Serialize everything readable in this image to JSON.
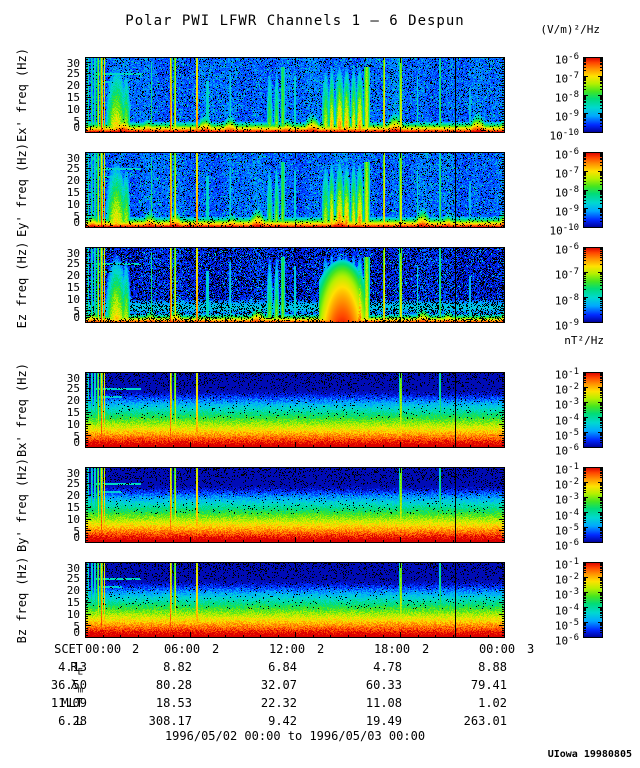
{
  "title": "Polar PWI LFWR Channels 1 — 6 Despun",
  "credit": "UIowa 19980805",
  "footer": {
    "date_range": "1996/05/02 00:00 to 1996/05/03 00:00"
  },
  "chart_data": {
    "type": "heatmap",
    "subtype": "spectrogram",
    "title": "Polar PWI LFWR Channels 1 — 6 Despun",
    "units": {
      "electric": "(V/m)²/Hz",
      "magnetic": "nT²/Hz"
    },
    "cb_base": "10",
    "x": {
      "label": "SCET",
      "start": "1996/05/02 00:00",
      "end": "1996/05/03 00:00",
      "hours": 24,
      "tick_hours": [
        0,
        6,
        12,
        18,
        24
      ],
      "tick_labels": [
        "00:00",
        "06:00",
        "12:00",
        "18:00",
        "00:00"
      ],
      "tick_days": [
        "2",
        "2",
        "2",
        "2",
        "3"
      ]
    },
    "y": {
      "ticks": [
        30,
        25,
        20,
        15,
        10,
        5,
        0
      ],
      "lim": [
        0,
        32
      ]
    },
    "colormap": [
      [
        0.0,
        "#000096"
      ],
      [
        0.1,
        "#0028ff"
      ],
      [
        0.22,
        "#00a8ff"
      ],
      [
        0.33,
        "#00d8d0"
      ],
      [
        0.45,
        "#00dc78"
      ],
      [
        0.55,
        "#46e61e"
      ],
      [
        0.65,
        "#b4f000"
      ],
      [
        0.75,
        "#ffe100"
      ],
      [
        0.85,
        "#ff9000"
      ],
      [
        0.93,
        "#ff4600"
      ],
      [
        1.0,
        "#dc0000"
      ]
    ],
    "panels": [
      {
        "id": "ex",
        "ylabel": "Ex' freq (Hz)",
        "field": "E",
        "cb_exps": [
          -6,
          -7,
          -8,
          -9,
          -10
        ],
        "seed": 11
      },
      {
        "id": "ey",
        "ylabel": "Ey' freq (Hz)",
        "field": "E",
        "cb_exps": [
          -6,
          -7,
          -8,
          -9,
          -10
        ],
        "seed": 22
      },
      {
        "id": "ez",
        "ylabel": "Ez freq (Hz)",
        "field": "E",
        "dark": true,
        "cb_exps": [
          -6,
          -7,
          -8,
          -9
        ],
        "seed": 33,
        "bands": [
          {
            "f": 6.5,
            "fw": 3.0,
            "i": 0.3
          }
        ]
      },
      {
        "id": "bx",
        "ylabel": "Bx' freq (Hz)",
        "field": "B",
        "cb_exps": [
          -1,
          -2,
          -3,
          -4,
          -5,
          -6
        ],
        "seed": 44
      },
      {
        "id": "by",
        "ylabel": "By' freq (Hz)",
        "field": "B",
        "cb_exps": [
          -1,
          -2,
          -3,
          -4,
          -5,
          -6
        ],
        "seed": 55
      },
      {
        "id": "bz",
        "ylabel": "Bz freq (Hz)",
        "field": "B",
        "cb_exps": [
          -1,
          -2,
          -3,
          -4,
          -5,
          -6
        ],
        "seed": 66
      }
    ],
    "h_lines": [
      {
        "f": 25.0,
        "t0": 0.55,
        "t1": 3.2,
        "i": 0.34
      },
      {
        "f": 21.5,
        "t0": 0.8,
        "t1": 2.1,
        "i": 0.3
      }
    ],
    "events": [
      {
        "t": 0.15,
        "w": 0.06,
        "fmax": 32,
        "i": 0.54,
        "panels": "all"
      },
      {
        "t": 0.38,
        "w": 0.05,
        "fmax": 32,
        "i": 0.5,
        "panels": "all"
      },
      {
        "t": 0.58,
        "w": 0.05,
        "fmax": 32,
        "i": 0.54,
        "panels": "all"
      },
      {
        "t": 0.76,
        "w": 0.06,
        "fmax": 32,
        "i": 0.72,
        "panels": "all"
      },
      {
        "t": 0.95,
        "w": 0.07,
        "fmax": 32,
        "i": 0.96,
        "panels": "all"
      },
      {
        "t": 1.12,
        "w": 0.05,
        "fmax": 32,
        "i": 0.86,
        "panels": "all"
      },
      {
        "t": 1.8,
        "w": 0.75,
        "fmax": 30,
        "i": 0.8,
        "panels": "E",
        "plume": true
      },
      {
        "t": 1.95,
        "w": 0.8,
        "fmax": 20,
        "i": 0.62,
        "panels": "B",
        "plume": true
      },
      {
        "t": 2.35,
        "w": 0.3,
        "fmax": 28,
        "i": 0.7,
        "panels": "E",
        "plume": true
      },
      {
        "t": 3.8,
        "w": 0.05,
        "fmax": 30,
        "i": 0.48,
        "panels": "E"
      },
      {
        "t": 4.9,
        "w": 0.06,
        "fmax": 32,
        "i": 0.96,
        "panels": "all"
      },
      {
        "t": 5.15,
        "w": 0.05,
        "fmax": 32,
        "i": 0.82,
        "panels": "all"
      },
      {
        "t": 6.4,
        "w": 0.06,
        "fmax": 32,
        "i": 0.96,
        "panels": "all"
      },
      {
        "t": 7.0,
        "w": 0.1,
        "fmax": 22,
        "i": 0.42,
        "panels": "E"
      },
      {
        "t": 8.3,
        "w": 0.05,
        "fmax": 26,
        "i": 0.38,
        "panels": "E"
      },
      {
        "t": 10.55,
        "w": 0.22,
        "fmax": 30,
        "i": 0.62,
        "panels": "E",
        "plume": true
      },
      {
        "t": 10.95,
        "w": 0.18,
        "fmax": 30,
        "i": 0.66,
        "panels": "E",
        "plume": true
      },
      {
        "t": 11.3,
        "w": 0.12,
        "fmax": 28,
        "i": 0.6,
        "panels": "E"
      },
      {
        "t": 12.0,
        "w": 0.06,
        "fmax": 24,
        "i": 0.4,
        "panels": "E"
      },
      {
        "t": 13.75,
        "w": 0.28,
        "fmax": 30,
        "i": 0.72,
        "panels": "E",
        "plume": true
      },
      {
        "t": 14.1,
        "w": 0.22,
        "fmax": 31,
        "i": 0.85,
        "panels": "E",
        "plume": true
      },
      {
        "t": 14.55,
        "w": 0.32,
        "fmax": 31,
        "i": 0.9,
        "panels": "E",
        "plume": true
      },
      {
        "t": 14.7,
        "w": 1.3,
        "fmax": 27,
        "i": 0.96,
        "panels": [
          2
        ],
        "blob": true
      },
      {
        "t": 14.95,
        "w": 0.28,
        "fmax": 30,
        "i": 0.88,
        "panels": "E",
        "plume": true
      },
      {
        "t": 15.35,
        "w": 0.22,
        "fmax": 31,
        "i": 0.8,
        "panels": "E",
        "plume": true
      },
      {
        "t": 15.7,
        "w": 0.28,
        "fmax": 30,
        "i": 0.9,
        "panels": "E",
        "plume": true
      },
      {
        "t": 16.1,
        "w": 0.16,
        "fmax": 28,
        "i": 0.75,
        "panels": "E"
      },
      {
        "t": 17.1,
        "w": 0.07,
        "fmax": 32,
        "i": 0.82,
        "panels": "E"
      },
      {
        "t": 18.05,
        "w": 0.09,
        "fmax": 32,
        "i": 0.74,
        "panels": "all"
      },
      {
        "t": 19.0,
        "w": 0.05,
        "fmax": 24,
        "i": 0.4,
        "panels": "E"
      },
      {
        "t": 20.3,
        "w": 0.05,
        "fmax": 32,
        "i": 0.55,
        "panels": "all"
      },
      {
        "t": 21.15,
        "w": 0.05,
        "fmax": 32,
        "i": -1,
        "panels": "all",
        "dark": true
      },
      {
        "t": 22.0,
        "w": 0.05,
        "fmax": 20,
        "i": 0.35,
        "panels": "E"
      }
    ],
    "ephemeris": {
      "rows": [
        {
          "id": "scet",
          "label": "SCET",
          "sub": "",
          "type": "time"
        },
        {
          "id": "re",
          "label": "R",
          "sub": "E",
          "values": [
            "4.13",
            "8.82",
            "6.84",
            "4.78",
            "8.88"
          ]
        },
        {
          "id": "lambda-m",
          "label": "λ",
          "sub": "m",
          "values": [
            "36.50",
            "80.28",
            "32.07",
            "60.33",
            "79.41"
          ]
        },
        {
          "id": "mlt",
          "label": "MLT",
          "sub": "",
          "values": [
            "11.09",
            "18.53",
            "22.32",
            "11.08",
            "1.02"
          ]
        },
        {
          "id": "l",
          "label": "L",
          "sub": "",
          "values": [
            "6.28",
            "308.17",
            "9.42",
            "19.49",
            "263.01"
          ]
        }
      ]
    }
  }
}
